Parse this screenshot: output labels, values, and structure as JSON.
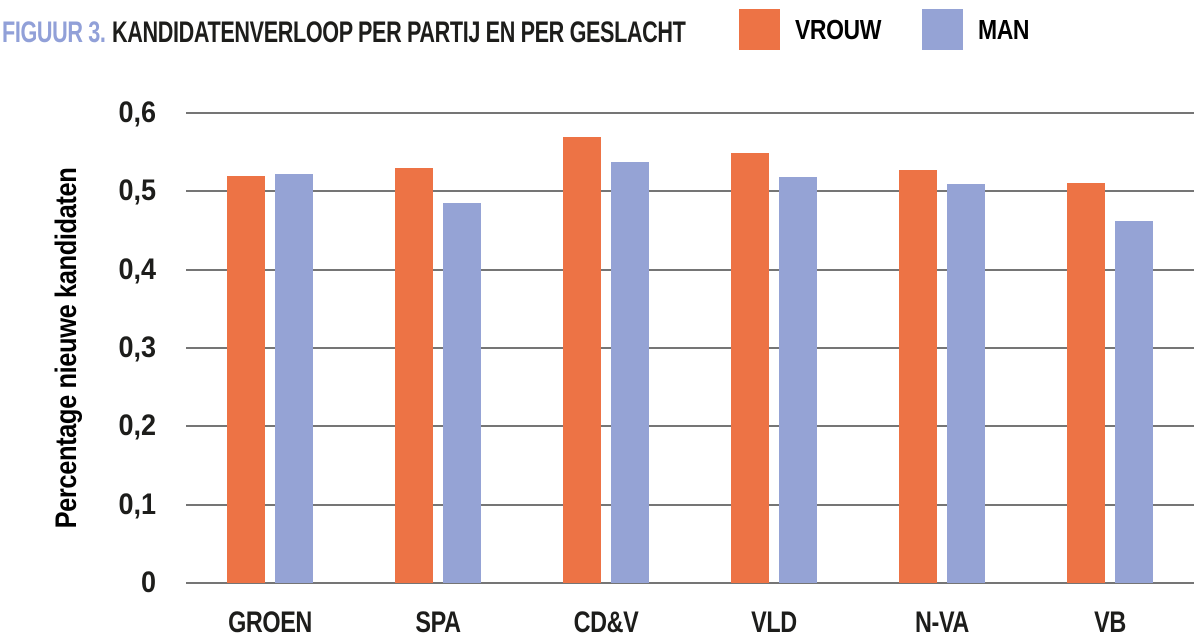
{
  "header": {
    "figure_label": "FIGUUR 3.",
    "title": "KANDIDATENVERLOOP PER PARTIJ EN PER GESLACHT"
  },
  "legend": [
    {
      "label": "VROUW",
      "color": "#ED7345"
    },
    {
      "label": "MAN",
      "color": "#95A3D5"
    }
  ],
  "chart_data": {
    "type": "bar",
    "title": "FIGUUR 3. KANDIDATENVERLOOP PER PARTIJ EN PER GESLACHT",
    "categories": [
      "GROEN",
      "SPA",
      "CD&V",
      "VLD",
      "N-VA",
      "VB"
    ],
    "series": [
      {
        "name": "VROUW",
        "color": "#ED7345",
        "values": [
          0.52,
          0.53,
          0.57,
          0.549,
          0.527,
          0.511
        ]
      },
      {
        "name": "MAN",
        "color": "#95A3D5",
        "values": [
          0.522,
          0.485,
          0.538,
          0.518,
          0.509,
          0.462
        ]
      }
    ],
    "xlabel": "",
    "ylabel": "Percentage nieuwe kandidaten",
    "ylim": [
      0,
      0.6
    ],
    "ytick_values": [
      0,
      0.1,
      0.2,
      0.3,
      0.4,
      0.5,
      0.6
    ],
    "ytick_labels": [
      "0",
      "0,1",
      "0,2",
      "0,3",
      "0,4",
      "0,5",
      "0,6"
    ],
    "grid": true,
    "legend_position": "top-right"
  },
  "colors": {
    "figure_label": "#91A0D8",
    "title_text": "#1D1D1B",
    "grid": "#757575",
    "background": "#FFFFFF"
  }
}
